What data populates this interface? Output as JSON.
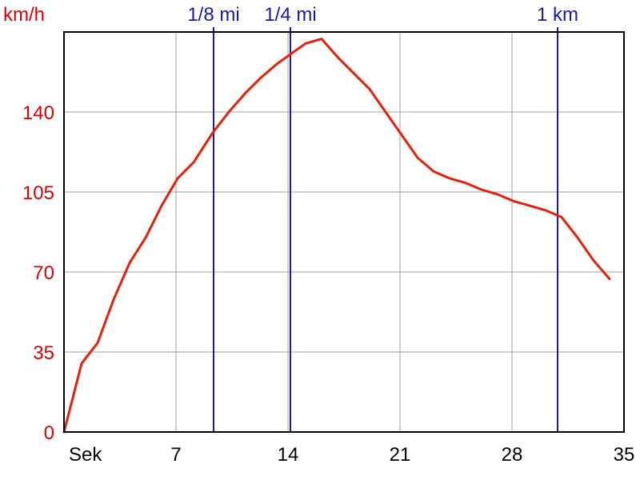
{
  "chart_data": {
    "type": "line",
    "title": "",
    "ylabel": "km/h",
    "xlabel": "Sek",
    "xlim": [
      0,
      35
    ],
    "ylim": [
      0,
      175
    ],
    "xticks": [
      {
        "value": 7,
        "label": "7"
      },
      {
        "value": 14,
        "label": "14"
      },
      {
        "value": 21,
        "label": "21"
      },
      {
        "value": 28,
        "label": "28"
      },
      {
        "value": 35,
        "label": "35"
      }
    ],
    "yticks": [
      {
        "value": 0,
        "label": "0"
      },
      {
        "value": 35,
        "label": "35"
      },
      {
        "value": 70,
        "label": "70"
      },
      {
        "value": 105,
        "label": "105"
      },
      {
        "value": 140,
        "label": "140"
      }
    ],
    "grid": true,
    "markers": [
      {
        "x": 9.35,
        "label": "1/8 mi"
      },
      {
        "x": 14.15,
        "label": "1/4 mi"
      },
      {
        "x": 30.85,
        "label": "1 km"
      }
    ],
    "series": [
      {
        "color": "#e8200a",
        "x": [
          0,
          1.1,
          2.1,
          3.1,
          4.1,
          5.1,
          6.1,
          7.1,
          8.1,
          9.3,
          10.3,
          11.3,
          12.3,
          13.3,
          14.3,
          15.1,
          16.1,
          17.1,
          18.1,
          19.1,
          20.1,
          21.1,
          22.1,
          23.1,
          24.1,
          25.1,
          26.1,
          27.1,
          28.1,
          29.1,
          30.1,
          31.1,
          32.1,
          33.1,
          34.1
        ],
        "y": [
          0,
          30,
          39,
          58,
          74,
          85,
          99,
          111,
          118,
          131,
          140,
          148,
          155,
          161,
          166,
          170,
          172,
          164,
          157,
          150,
          140,
          130,
          120,
          114,
          111,
          109,
          106,
          104,
          101,
          99,
          97,
          94,
          85,
          75,
          67
        ]
      }
    ]
  }
}
